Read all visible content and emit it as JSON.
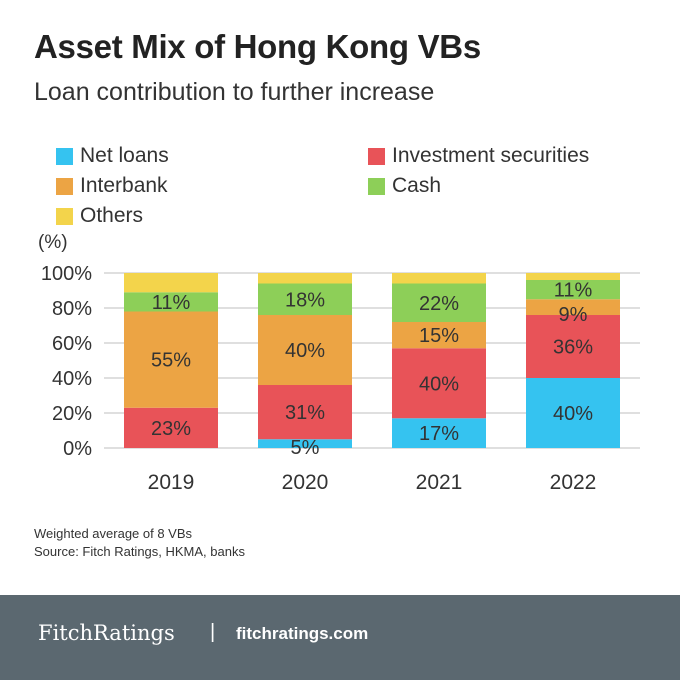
{
  "chart_data": {
    "type": "bar",
    "stacked": true,
    "title": "Asset Mix of Hong Kong VBs",
    "subtitle": "Loan contribution to further increase",
    "ylabel": "(%)",
    "ylim": [
      0,
      100
    ],
    "yticks": [
      "0%",
      "20%",
      "40%",
      "60%",
      "80%",
      "100%"
    ],
    "categories": [
      "2019",
      "2020",
      "2021",
      "2022"
    ],
    "legend_position": "top",
    "grid": true,
    "series": [
      {
        "name": "Net loans",
        "color": "#35c3f0",
        "values": [
          0,
          5,
          17,
          40
        ],
        "labels": [
          "",
          "5%",
          "17%",
          "40%"
        ]
      },
      {
        "name": "Investment securities",
        "color": "#e85358",
        "values": [
          23,
          31,
          40,
          36
        ],
        "labels": [
          "23%",
          "31%",
          "40%",
          "36%"
        ]
      },
      {
        "name": "Interbank",
        "color": "#eca444",
        "values": [
          55,
          40,
          15,
          9
        ],
        "labels": [
          "55%",
          "40%",
          "15%",
          "9%"
        ]
      },
      {
        "name": "Cash",
        "color": "#8dcf58",
        "values": [
          11,
          18,
          22,
          11
        ],
        "labels": [
          "11%",
          "18%",
          "22%",
          "11%"
        ]
      },
      {
        "name": "Others",
        "color": "#f3d44b",
        "values": [
          11,
          6,
          6,
          4
        ],
        "labels": [
          "",
          "",
          "",
          ""
        ]
      }
    ]
  },
  "notes": {
    "line1": "Weighted average of 8 VBs",
    "line2": "Source: Fitch Ratings, HKMA, banks"
  },
  "footer": {
    "brand": "FitchRatings",
    "separator": "|",
    "site": "fitchratings.com"
  }
}
